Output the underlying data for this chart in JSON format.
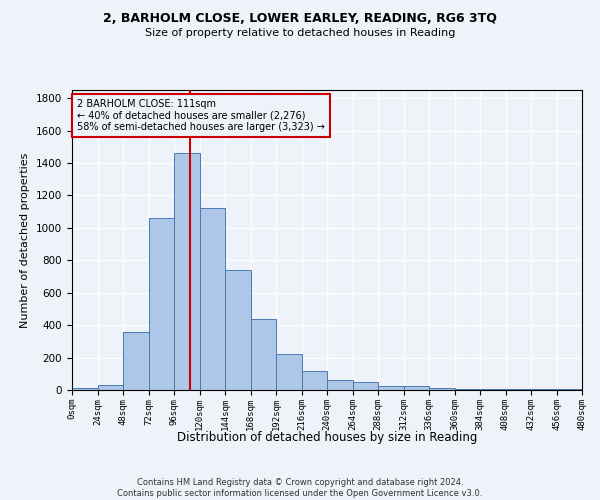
{
  "title_line1": "2, BARHOLM CLOSE, LOWER EARLEY, READING, RG6 3TQ",
  "title_line2": "Size of property relative to detached houses in Reading",
  "xlabel": "Distribution of detached houses by size in Reading",
  "ylabel": "Number of detached properties",
  "footer_line1": "Contains HM Land Registry data © Crown copyright and database right 2024.",
  "footer_line2": "Contains public sector information licensed under the Open Government Licence v3.0.",
  "annotation_line1": "2 BARHOLM CLOSE: 111sqm",
  "annotation_line2": "← 40% of detached houses are smaller (2,276)",
  "annotation_line3": "58% of semi-detached houses are larger (3,323) →",
  "property_size": 111,
  "bin_edges": [
    0,
    24,
    48,
    72,
    96,
    120,
    144,
    168,
    192,
    216,
    240,
    264,
    288,
    312,
    336,
    360,
    384,
    408,
    432,
    456,
    480
  ],
  "bar_values": [
    15,
    30,
    360,
    1060,
    1460,
    1120,
    740,
    435,
    225,
    115,
    60,
    50,
    27,
    22,
    10,
    8,
    5,
    5,
    5,
    5
  ],
  "bar_color": "#aec6e8",
  "bar_edge_color": "#4a7ab5",
  "vline_color": "#cc0000",
  "vline_x": 111,
  "annotation_box_edge_color": "#cc0000",
  "background_color": "#eef2f9",
  "grid_color": "#ffffff",
  "ylim": [
    0,
    1850
  ],
  "yticks": [
    0,
    200,
    400,
    600,
    800,
    1000,
    1200,
    1400,
    1600,
    1800
  ]
}
